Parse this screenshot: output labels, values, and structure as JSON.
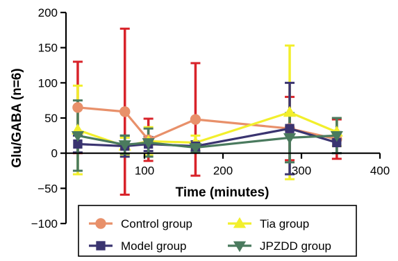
{
  "chart_data": {
    "type": "line",
    "title": "",
    "xlabel": "Time (minutes)",
    "ylabel": "Glu/GABA (n=6)",
    "xlim": [
      0,
      400
    ],
    "ylim": [
      -100,
      200
    ],
    "x_ticks": [
      100,
      200,
      300,
      400
    ],
    "y_ticks": [
      200,
      150,
      100,
      50,
      0,
      -50,
      -100
    ],
    "x_tick_labels": [
      "100",
      "200",
      "300",
      "400"
    ],
    "y_tick_labels": [
      "200",
      "150",
      "100",
      "50",
      "0",
      "−50",
      "−100"
    ],
    "grid": false,
    "legend_position": "bottom",
    "series": [
      {
        "name": "Control group",
        "color": "#e8906a",
        "errcolor": "#d8232a",
        "marker": "circle",
        "x": [
          15,
          75,
          105,
          165,
          285,
          345
        ],
        "y": [
          65,
          59,
          19,
          48,
          35,
          20
        ],
        "err": [
          65,
          118,
          30,
          80,
          45,
          28
        ]
      },
      {
        "name": "Tia group",
        "color": "#f2ef2c",
        "errcolor": "#f2ef2c",
        "marker": "triangle-up",
        "x": [
          15,
          75,
          105,
          165,
          285,
          345
        ],
        "y": [
          33,
          10,
          17,
          15,
          58,
          30
        ],
        "err": [
          63,
          12,
          20,
          10,
          95,
          20
        ]
      },
      {
        "name": "Model group",
        "color": "#3a3470",
        "errcolor": "#3a3470",
        "marker": "square",
        "x": [
          15,
          75,
          105,
          165,
          285,
          345
        ],
        "y": [
          13,
          10,
          13,
          10,
          35,
          15
        ],
        "err": [
          12,
          15,
          10,
          7,
          65,
          15
        ]
      },
      {
        "name": "JPZDD group",
        "color": "#4a7a5e",
        "errcolor": "#4a7a5e",
        "marker": "triangle-down",
        "x": [
          15,
          75,
          105,
          165,
          285,
          345
        ],
        "y": [
          25,
          12,
          15,
          8,
          22,
          25
        ],
        "err": [
          50,
          13,
          20,
          7,
          35,
          25
        ]
      }
    ]
  }
}
